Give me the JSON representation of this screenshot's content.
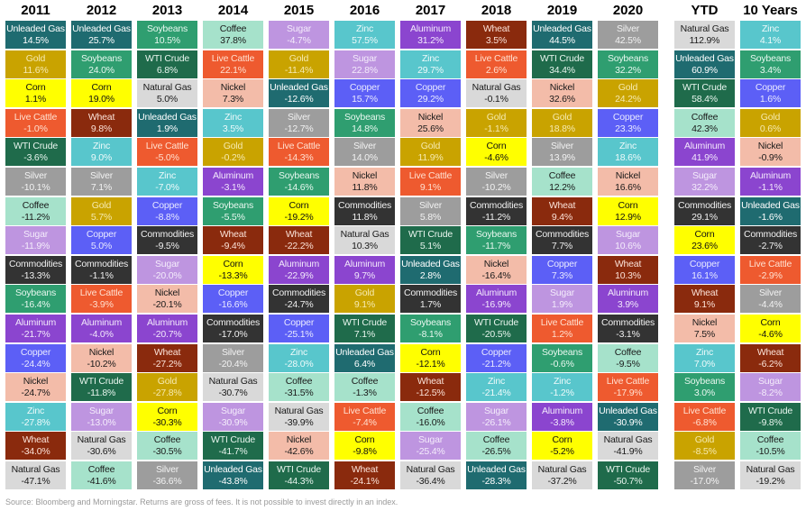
{
  "chart_data": {
    "type": "table",
    "title": "",
    "columns": [
      "2011",
      "2012",
      "2013",
      "2014",
      "2015",
      "2016",
      "2017",
      "2018",
      "2019",
      "2020",
      "YTD",
      "10 Years"
    ],
    "rows": [
      [
        [
          "Unleaded Gas",
          "14.5%"
        ],
        [
          "Gold",
          "11.6%"
        ],
        [
          "Corn",
          "1.1%"
        ],
        [
          "Live Cattle",
          "-1.0%"
        ],
        [
          "WTI Crude",
          "-3.6%"
        ],
        [
          "Silver",
          "-10.1%"
        ],
        [
          "Coffee",
          "-11.2%"
        ],
        [
          "Sugar",
          "-11.9%"
        ],
        [
          "Commodities",
          "-13.3%"
        ],
        [
          "Soybeans",
          "-16.4%"
        ],
        [
          "Aluminum",
          "-21.7%"
        ],
        [
          "Copper",
          "-24.4%"
        ],
        [
          "Nickel",
          "-24.7%"
        ],
        [
          "Zinc",
          "-27.8%"
        ],
        [
          "Wheat",
          "-34.0%"
        ],
        [
          "Natural Gas",
          "-47.1%"
        ]
      ],
      [
        [
          "Unleaded Gas",
          "25.7%"
        ],
        [
          "Soybeans",
          "24.0%"
        ],
        [
          "Corn",
          "19.0%"
        ],
        [
          "Wheat",
          "9.8%"
        ],
        [
          "Zinc",
          "9.0%"
        ],
        [
          "Silver",
          "7.1%"
        ],
        [
          "Gold",
          "5.7%"
        ],
        [
          "Copper",
          "5.0%"
        ],
        [
          "Commodities",
          "-1.1%"
        ],
        [
          "Live Cattle",
          "-3.9%"
        ],
        [
          "Aluminum",
          "-4.0%"
        ],
        [
          "Nickel",
          "-10.2%"
        ],
        [
          "WTI Crude",
          "-11.8%"
        ],
        [
          "Sugar",
          "-13.0%"
        ],
        [
          "Natural Gas",
          "-30.6%"
        ],
        [
          "Coffee",
          "-41.6%"
        ]
      ],
      [
        [
          "Soybeans",
          "10.5%"
        ],
        [
          "WTI Crude",
          "6.8%"
        ],
        [
          "Natural Gas",
          "5.0%"
        ],
        [
          "Unleaded Gas",
          "1.9%"
        ],
        [
          "Live Cattle",
          "-5.0%"
        ],
        [
          "Zinc",
          "-7.0%"
        ],
        [
          "Copper",
          "-8.8%"
        ],
        [
          "Commodities",
          "-9.5%"
        ],
        [
          "Sugar",
          "-20.0%"
        ],
        [
          "Nickel",
          "-20.1%"
        ],
        [
          "Aluminum",
          "-20.7%"
        ],
        [
          "Wheat",
          "-27.2%"
        ],
        [
          "Gold",
          "-27.8%"
        ],
        [
          "Corn",
          "-30.3%"
        ],
        [
          "Coffee",
          "-30.5%"
        ],
        [
          "Silver",
          "-36.6%"
        ]
      ],
      [
        [
          "Coffee",
          "37.8%"
        ],
        [
          "Live Cattle",
          "22.1%"
        ],
        [
          "Nickel",
          "7.3%"
        ],
        [
          "Zinc",
          "3.5%"
        ],
        [
          "Gold",
          "-0.2%"
        ],
        [
          "Aluminum",
          "-3.1%"
        ],
        [
          "Soybeans",
          "-5.5%"
        ],
        [
          "Wheat",
          "-9.4%"
        ],
        [
          "Corn",
          "-13.3%"
        ],
        [
          "Copper",
          "-16.6%"
        ],
        [
          "Commodities",
          "-17.0%"
        ],
        [
          "Silver",
          "-20.4%"
        ],
        [
          "Natural Gas",
          "-30.7%"
        ],
        [
          "Sugar",
          "-30.9%"
        ],
        [
          "WTI Crude",
          "-41.7%"
        ],
        [
          "Unleaded Gas",
          "-43.8%"
        ]
      ],
      [
        [
          "Sugar",
          "-4.7%"
        ],
        [
          "Gold",
          "-11.4%"
        ],
        [
          "Unleaded Gas",
          "-12.6%"
        ],
        [
          "Silver",
          "-12.7%"
        ],
        [
          "Live Cattle",
          "-14.3%"
        ],
        [
          "Soybeans",
          "-14.6%"
        ],
        [
          "Corn",
          "-19.2%"
        ],
        [
          "Wheat",
          "-22.2%"
        ],
        [
          "Aluminum",
          "-22.9%"
        ],
        [
          "Commodities",
          "-24.7%"
        ],
        [
          "Copper",
          "-25.1%"
        ],
        [
          "Zinc",
          "-28.0%"
        ],
        [
          "Coffee",
          "-31.5%"
        ],
        [
          "Natural Gas",
          "-39.9%"
        ],
        [
          "Nickel",
          "-42.6%"
        ],
        [
          "WTI Crude",
          "-44.3%"
        ]
      ],
      [
        [
          "Zinc",
          "57.5%"
        ],
        [
          "Sugar",
          "22.8%"
        ],
        [
          "Copper",
          "15.7%"
        ],
        [
          "Soybeans",
          "14.8%"
        ],
        [
          "Silver",
          "14.0%"
        ],
        [
          "Nickel",
          "11.8%"
        ],
        [
          "Commodities",
          "11.8%"
        ],
        [
          "Natural Gas",
          "10.3%"
        ],
        [
          "Aluminum",
          "9.7%"
        ],
        [
          "Gold",
          "9.1%"
        ],
        [
          "WTI Crude",
          "7.1%"
        ],
        [
          "Unleaded Gas",
          "6.4%"
        ],
        [
          "Coffee",
          "-1.3%"
        ],
        [
          "Live Cattle",
          "-7.4%"
        ],
        [
          "Corn",
          "-9.8%"
        ],
        [
          "Wheat",
          "-24.1%"
        ]
      ],
      [
        [
          "Aluminum",
          "31.2%"
        ],
        [
          "Zinc",
          "29.7%"
        ],
        [
          "Copper",
          "29.2%"
        ],
        [
          "Nickel",
          "25.6%"
        ],
        [
          "Gold",
          "11.9%"
        ],
        [
          "Live Cattle",
          "9.1%"
        ],
        [
          "Silver",
          "5.8%"
        ],
        [
          "WTI Crude",
          "5.1%"
        ],
        [
          "Unleaded Gas",
          "2.8%"
        ],
        [
          "Commodities",
          "1.7%"
        ],
        [
          "Soybeans",
          "-8.1%"
        ],
        [
          "Corn",
          "-12.1%"
        ],
        [
          "Wheat",
          "-12.5%"
        ],
        [
          "Coffee",
          "-16.0%"
        ],
        [
          "Sugar",
          "-25.4%"
        ],
        [
          "Natural Gas",
          "-36.4%"
        ]
      ],
      [
        [
          "Wheat",
          "3.5%"
        ],
        [
          "Live Cattle",
          "2.6%"
        ],
        [
          "Natural Gas",
          "-0.1%"
        ],
        [
          "Gold",
          "-1.1%"
        ],
        [
          "Corn",
          "-4.6%"
        ],
        [
          "Silver",
          "-10.2%"
        ],
        [
          "Commodities",
          "-11.2%"
        ],
        [
          "Soybeans",
          "-11.7%"
        ],
        [
          "Nickel",
          "-16.4%"
        ],
        [
          "Aluminum",
          "-16.9%"
        ],
        [
          "WTI Crude",
          "-20.5%"
        ],
        [
          "Copper",
          "-21.2%"
        ],
        [
          "Zinc",
          "-21.4%"
        ],
        [
          "Sugar",
          "-26.1%"
        ],
        [
          "Coffee",
          "-26.5%"
        ],
        [
          "Unleaded Gas",
          "-28.3%"
        ]
      ],
      [
        [
          "Unleaded Gas",
          "44.5%"
        ],
        [
          "WTI Crude",
          "34.4%"
        ],
        [
          "Nickel",
          "32.6%"
        ],
        [
          "Gold",
          "18.8%"
        ],
        [
          "Silver",
          "13.9%"
        ],
        [
          "Coffee",
          "12.2%"
        ],
        [
          "Wheat",
          "9.4%"
        ],
        [
          "Commodities",
          "7.7%"
        ],
        [
          "Copper",
          "7.3%"
        ],
        [
          "Sugar",
          "1.9%"
        ],
        [
          "Live Cattle",
          "1.2%"
        ],
        [
          "Soybeans",
          "-0.6%"
        ],
        [
          "Zinc",
          "-1.2%"
        ],
        [
          "Aluminum",
          "-3.8%"
        ],
        [
          "Corn",
          "-5.2%"
        ],
        [
          "Natural Gas",
          "-37.2%"
        ]
      ],
      [
        [
          "Silver",
          "42.5%"
        ],
        [
          "Soybeans",
          "32.2%"
        ],
        [
          "Gold",
          "24.2%"
        ],
        [
          "Copper",
          "23.3%"
        ],
        [
          "Zinc",
          "18.6%"
        ],
        [
          "Nickel",
          "16.6%"
        ],
        [
          "Corn",
          "12.9%"
        ],
        [
          "Sugar",
          "10.6%"
        ],
        [
          "Wheat",
          "10.3%"
        ],
        [
          "Aluminum",
          "3.9%"
        ],
        [
          "Commodities",
          "-3.1%"
        ],
        [
          "Coffee",
          "-9.5%"
        ],
        [
          "Live Cattle",
          "-17.9%"
        ],
        [
          "Unleaded Gas",
          "-30.9%"
        ],
        [
          "Natural Gas",
          "-41.9%"
        ],
        [
          "WTI Crude",
          "-50.7%"
        ]
      ],
      [
        [
          "Natural Gas",
          "112.9%"
        ],
        [
          "Unleaded Gas",
          "60.9%"
        ],
        [
          "WTI Crude",
          "58.4%"
        ],
        [
          "Coffee",
          "42.3%"
        ],
        [
          "Aluminum",
          "41.9%"
        ],
        [
          "Sugar",
          "32.2%"
        ],
        [
          "Commodities",
          "29.1%"
        ],
        [
          "Corn",
          "23.6%"
        ],
        [
          "Copper",
          "16.1%"
        ],
        [
          "Wheat",
          "9.1%"
        ],
        [
          "Nickel",
          "7.5%"
        ],
        [
          "Zinc",
          "7.0%"
        ],
        [
          "Soybeans",
          "3.0%"
        ],
        [
          "Live Cattle",
          "-6.8%"
        ],
        [
          "Gold",
          "-8.5%"
        ],
        [
          "Silver",
          "-17.0%"
        ]
      ],
      [
        [
          "Zinc",
          "4.1%"
        ],
        [
          "Soybeans",
          "3.4%"
        ],
        [
          "Copper",
          "1.6%"
        ],
        [
          "Gold",
          "0.6%"
        ],
        [
          "Nickel",
          "-0.9%"
        ],
        [
          "Aluminum",
          "-1.1%"
        ],
        [
          "Unleaded Gas",
          "-1.6%"
        ],
        [
          "Commodities",
          "-2.7%"
        ],
        [
          "Live Cattle",
          "-2.9%"
        ],
        [
          "Silver",
          "-4.4%"
        ],
        [
          "Corn",
          "-4.6%"
        ],
        [
          "Wheat",
          "-6.2%"
        ],
        [
          "Sugar",
          "-8.2%"
        ],
        [
          "WTI Crude",
          "-9.8%"
        ],
        [
          "Coffee",
          "-10.5%"
        ],
        [
          "Natural Gas",
          "-19.2%"
        ]
      ]
    ],
    "colors": {
      "Unleaded Gas": [
        "#1f6b70",
        "#ffffff"
      ],
      "Gold": [
        "#c9a300",
        "#f6eab0"
      ],
      "Corn": [
        "#ffff00",
        "#111111"
      ],
      "Live Cattle": [
        "#ee5a2f",
        "#ffe0d0"
      ],
      "WTI Crude": [
        "#1f6b4b",
        "#e8f5ee"
      ],
      "Silver": [
        "#9d9d9d",
        "#f2f2f2"
      ],
      "Coffee": [
        "#a6e2cb",
        "#1a1a1a"
      ],
      "Sugar": [
        "#be95e0",
        "#f4ecfb"
      ],
      "Commodities": [
        "#333333",
        "#f0f0f0"
      ],
      "Soybeans": [
        "#2f9e70",
        "#e8f7ef"
      ],
      "Aluminum": [
        "#8b45cf",
        "#f2e8fb"
      ],
      "Copper": [
        "#5c5ff6",
        "#e8e9ff"
      ],
      "Nickel": [
        "#f3bca9",
        "#1a1a1a"
      ],
      "Zinc": [
        "#58c6cc",
        "#eefafa"
      ],
      "Wheat": [
        "#8a2a0d",
        "#fbe2d8"
      ],
      "Natural Gas": [
        "#d9d9d9",
        "#1a1a1a"
      ]
    }
  },
  "footer": "Source: Bloomberg and Morningstar. Returns are gross of fees. It is not possible to invest directly in an index."
}
